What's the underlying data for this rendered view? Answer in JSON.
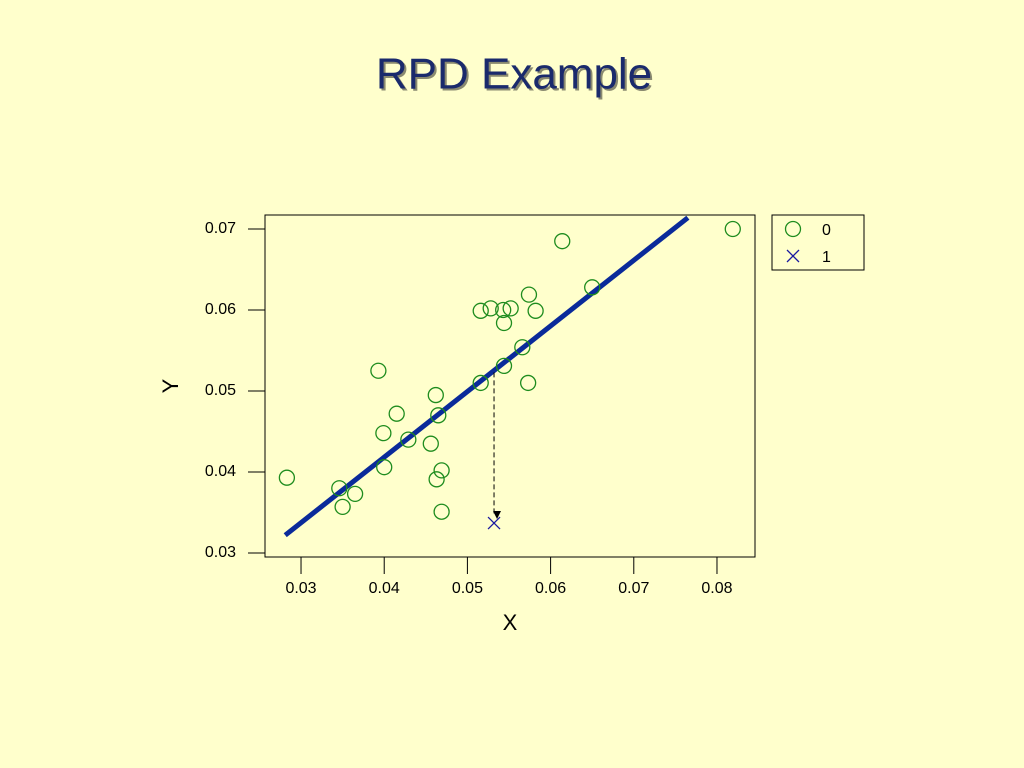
{
  "chart_data": {
    "type": "scatter",
    "title": "RPD Example",
    "x_label": "X",
    "y_label": "Y",
    "xlim": [
      0.02567,
      0.08457
    ],
    "ylim": [
      0.02951,
      0.07173
    ],
    "xticks": [
      0.03,
      0.04,
      0.05,
      0.06,
      0.07,
      0.08
    ],
    "yticks": [
      0.03,
      0.04,
      0.05,
      0.06,
      0.07
    ],
    "series": [
      {
        "name": "0",
        "color": "#1e8c1e",
        "marker": "circle",
        "x": [
          0.0283,
          0.0346,
          0.035,
          0.0365,
          0.0393,
          0.0399,
          0.04,
          0.0415,
          0.0429,
          0.0456,
          0.0462,
          0.0463,
          0.0465,
          0.0469,
          0.0469,
          0.0516,
          0.0516,
          0.0528,
          0.0543,
          0.0552,
          0.0544,
          0.0544,
          0.0566,
          0.0573,
          0.0574,
          0.0582,
          0.0614,
          0.065,
          0.0819
        ],
        "values": [
          0.0393,
          0.038,
          0.0357,
          0.0373,
          0.0525,
          0.0448,
          0.0406,
          0.0472,
          0.044,
          0.0435,
          0.0495,
          0.0391,
          0.047,
          0.0402,
          0.0351,
          0.051,
          0.0599,
          0.0602,
          0.06,
          0.0602,
          0.0584,
          0.0531,
          0.0554,
          0.051,
          0.0619,
          0.0599,
          0.0685,
          0.0628,
          0.07
        ]
      },
      {
        "name": "1",
        "color": "#1a1aa0",
        "marker": "x",
        "x": [
          0.0532
        ],
        "values": [
          0.0337
        ]
      }
    ],
    "fit_line": {
      "color": "#0a2a9a",
      "x": [
        0.0281,
        0.0765
      ],
      "values": [
        0.0322,
        0.0714
      ]
    },
    "arrow": {
      "x": [
        0.0532,
        0.0532
      ],
      "values": [
        0.0523,
        0.0347
      ]
    }
  }
}
